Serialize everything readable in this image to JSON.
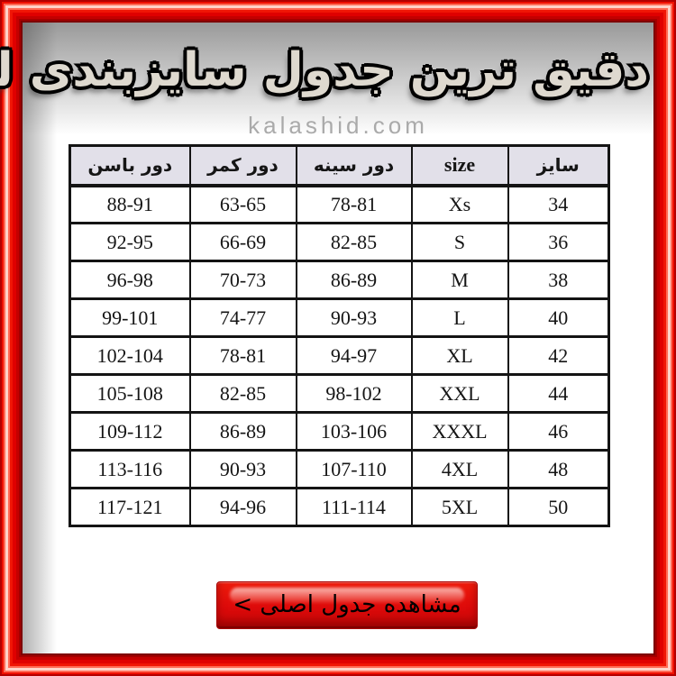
{
  "title": "دقیق ترین جدول سایزبندی لباس",
  "watermark": "kalashid.com",
  "table": {
    "headers": [
      "سایز",
      "size",
      "دور سینه",
      "دور کمر",
      "دور باسن"
    ],
    "rows": [
      [
        "34",
        "Xs",
        "78-81",
        "63-65",
        "88-91"
      ],
      [
        "36",
        "S",
        "82-85",
        "66-69",
        "92-95"
      ],
      [
        "38",
        "M",
        "86-89",
        "70-73",
        "96-98"
      ],
      [
        "40",
        "L",
        "90-93",
        "74-77",
        "99-101"
      ],
      [
        "42",
        "XL",
        "94-97",
        "78-81",
        "102-104"
      ],
      [
        "44",
        "XXL",
        "98-102",
        "82-85",
        "105-108"
      ],
      [
        "46",
        "XXXL",
        "103-106",
        "86-89",
        "109-112"
      ],
      [
        "48",
        "4XL",
        "107-110",
        "90-93",
        "113-116"
      ],
      [
        "50",
        "5XL",
        "111-114",
        "94-96",
        "117-121"
      ]
    ]
  },
  "button": {
    "label": "مشاهده جدول اصلی >"
  },
  "colors": {
    "frame_red": "#e80000",
    "frame_highlight": "#ffd2c8",
    "frame_inner_dark": "#7e0000",
    "header_bg": "#e2e0e9",
    "table_border": "#141414",
    "button_red": "#dd0a0a",
    "watermark_gray": "#aaaaaa",
    "title_fill": "#ded9cf",
    "title_outline": "#000000"
  }
}
